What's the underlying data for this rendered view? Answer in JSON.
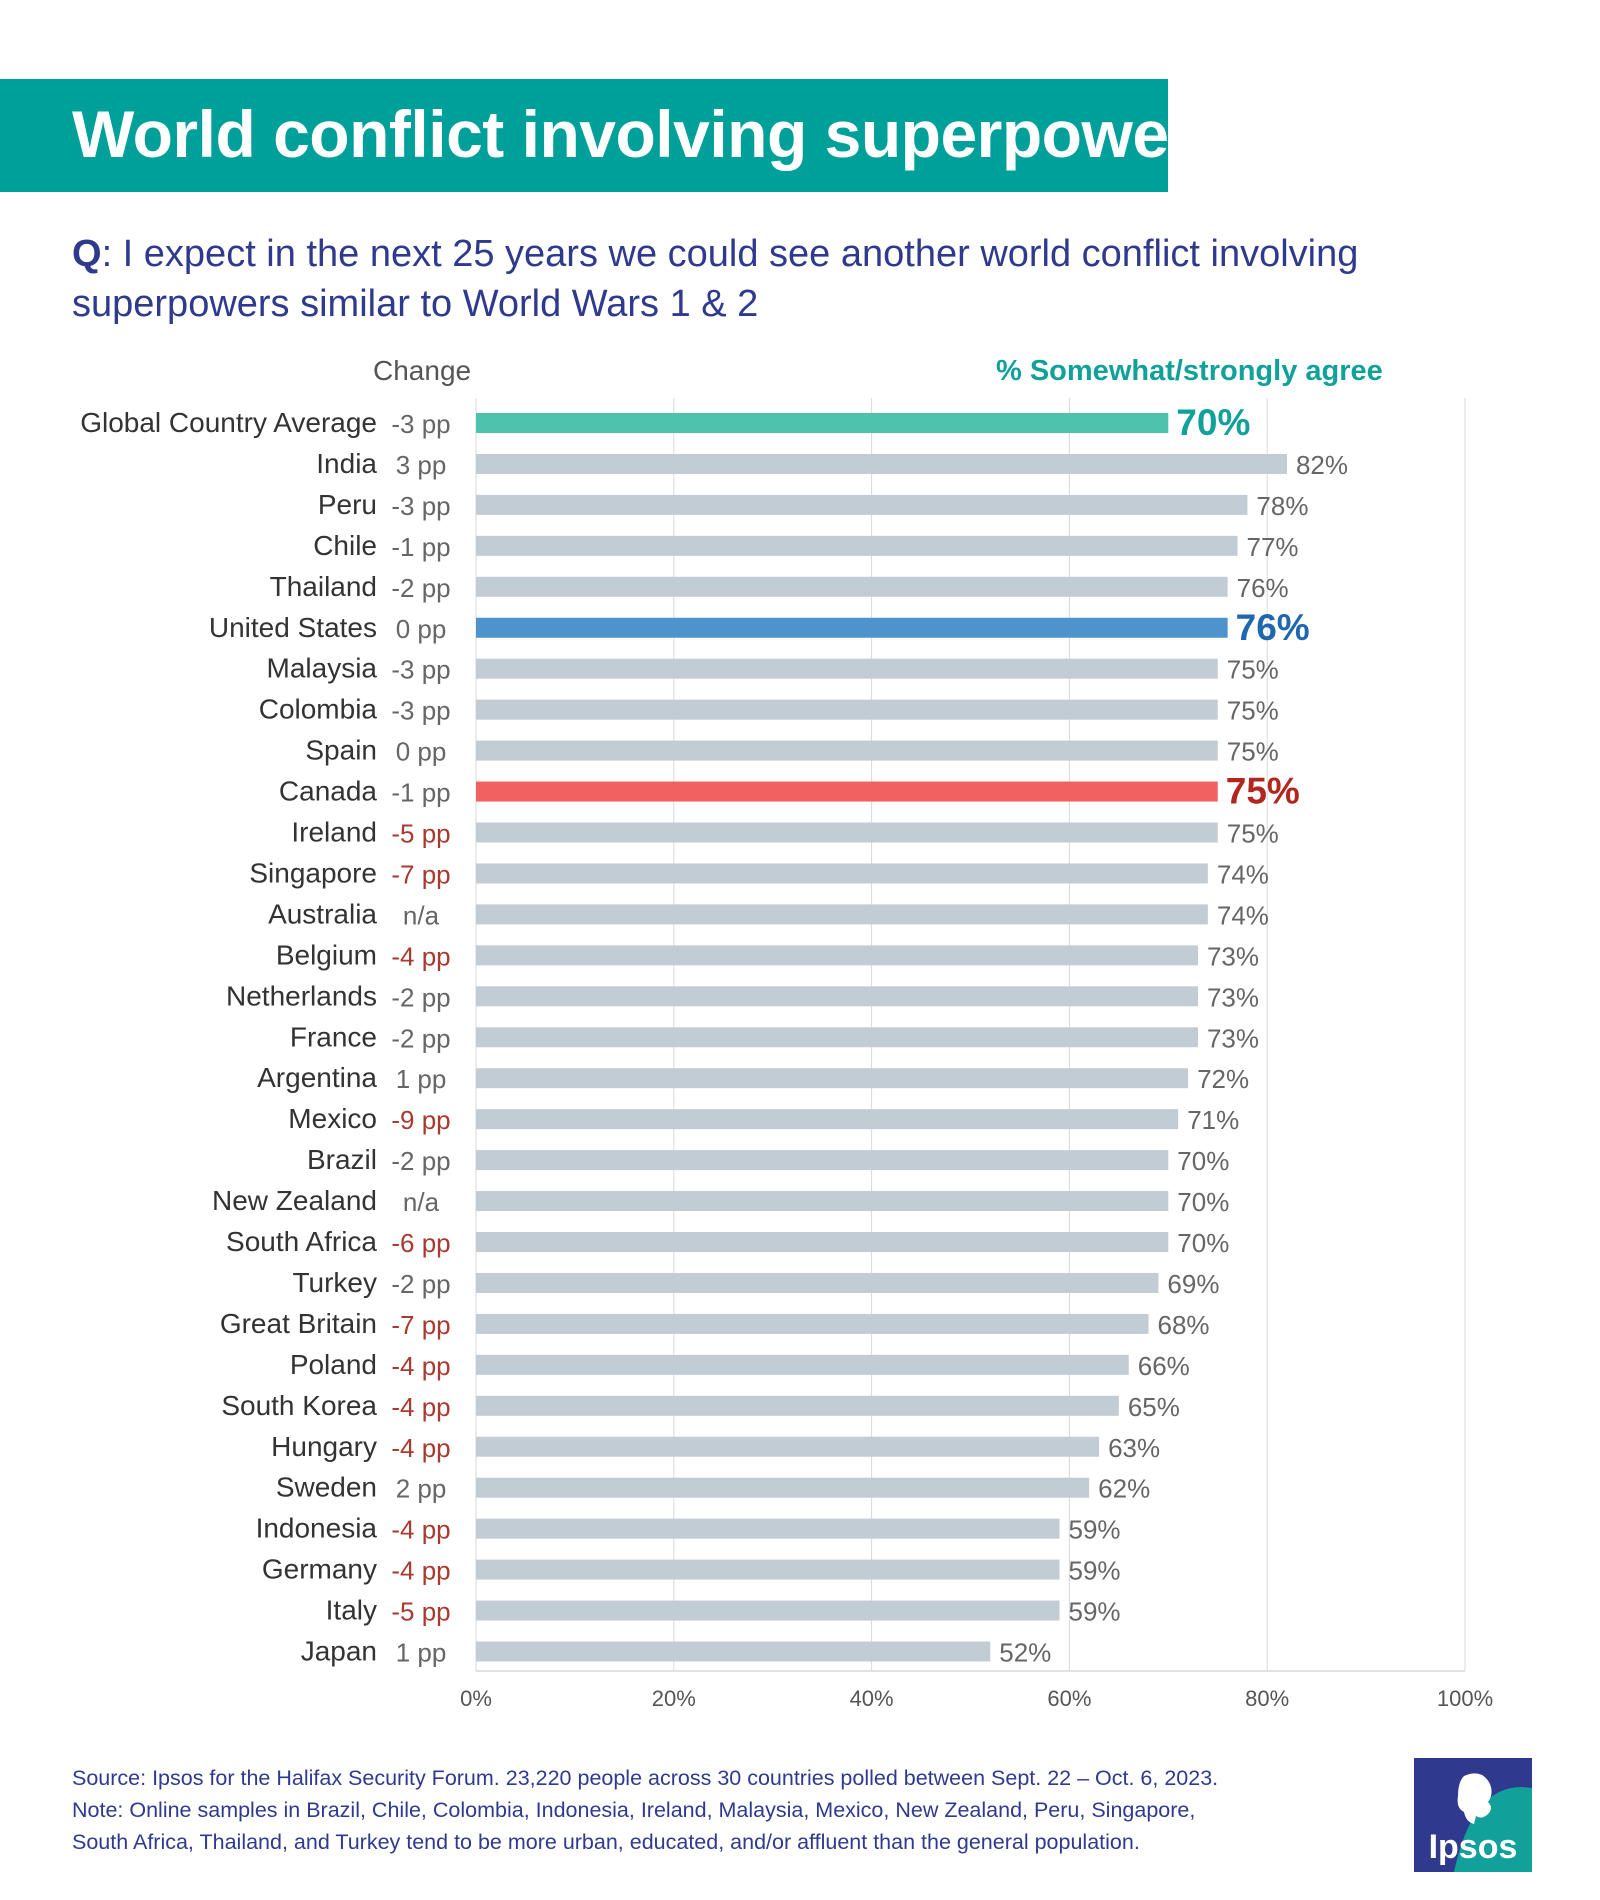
{
  "title": "World conflict involving superpower",
  "question": {
    "prefix": "Q",
    "text": ": I expect in the next 25 years we could see another world conflict involving superpowers similar to World Wars 1 & 2"
  },
  "headers": {
    "change": "Change",
    "agree": "% Somewhat/strongly agree"
  },
  "colors": {
    "default_bar": "#c2ccd4",
    "global_bar": "#4fc2ad",
    "global_label": "#12a09a",
    "us_bar": "#4f93cc",
    "us_label": "#1f67ae",
    "canada_bar": "#f16161",
    "canada_label": "#b3251f",
    "change_negative": "#a83a2f",
    "change_neutral": "#666666",
    "grid": "#d9d9d9"
  },
  "chart_data": {
    "type": "bar",
    "orientation": "horizontal",
    "xlim": [
      0,
      100
    ],
    "xticks": [
      "0%",
      "20%",
      "40%",
      "60%",
      "80%",
      "100%"
    ],
    "grid": true,
    "rows": [
      {
        "country": "Global Country Average",
        "change": "-3 pp",
        "value": 70,
        "label": "70%",
        "style": "global"
      },
      {
        "country": "India",
        "change": "3 pp",
        "value": 82,
        "label": "82%",
        "style": "default"
      },
      {
        "country": "Peru",
        "change": "-3 pp",
        "value": 78,
        "label": "78%",
        "style": "default"
      },
      {
        "country": "Chile",
        "change": "-1 pp",
        "value": 77,
        "label": "77%",
        "style": "default"
      },
      {
        "country": "Thailand",
        "change": "-2 pp",
        "value": 76,
        "label": "76%",
        "style": "default"
      },
      {
        "country": "United States",
        "change": "0 pp",
        "value": 76,
        "label": "76%",
        "style": "us"
      },
      {
        "country": "Malaysia",
        "change": "-3 pp",
        "value": 75,
        "label": "75%",
        "style": "default"
      },
      {
        "country": "Colombia",
        "change": "-3 pp",
        "value": 75,
        "label": "75%",
        "style": "default"
      },
      {
        "country": "Spain",
        "change": "0 pp",
        "value": 75,
        "label": "75%",
        "style": "default"
      },
      {
        "country": "Canada",
        "change": "-1 pp",
        "value": 75,
        "label": "75%",
        "style": "canada"
      },
      {
        "country": "Ireland",
        "change": "-5 pp",
        "value": 75,
        "label": "75%",
        "style": "default"
      },
      {
        "country": "Singapore",
        "change": "-7 pp",
        "value": 74,
        "label": "74%",
        "style": "default"
      },
      {
        "country": "Australia",
        "change": "n/a",
        "value": 74,
        "label": "74%",
        "style": "default"
      },
      {
        "country": "Belgium",
        "change": "-4 pp",
        "value": 73,
        "label": "73%",
        "style": "default"
      },
      {
        "country": "Netherlands",
        "change": "-2 pp",
        "value": 73,
        "label": "73%",
        "style": "default"
      },
      {
        "country": "France",
        "change": "-2 pp",
        "value": 73,
        "label": "73%",
        "style": "default"
      },
      {
        "country": "Argentina",
        "change": "1 pp",
        "value": 72,
        "label": "72%",
        "style": "default"
      },
      {
        "country": "Mexico",
        "change": "-9 pp",
        "value": 71,
        "label": "71%",
        "style": "default"
      },
      {
        "country": "Brazil",
        "change": "-2 pp",
        "value": 70,
        "label": "70%",
        "style": "default"
      },
      {
        "country": "New Zealand",
        "change": "n/a",
        "value": 70,
        "label": "70%",
        "style": "default"
      },
      {
        "country": "South Africa",
        "change": "-6 pp",
        "value": 70,
        "label": "70%",
        "style": "default"
      },
      {
        "country": "Turkey",
        "change": "-2 pp",
        "value": 69,
        "label": "69%",
        "style": "default"
      },
      {
        "country": "Great Britain",
        "change": "-7 pp",
        "value": 68,
        "label": "68%",
        "style": "default"
      },
      {
        "country": "Poland",
        "change": "-4 pp",
        "value": 66,
        "label": "66%",
        "style": "default"
      },
      {
        "country": "South Korea",
        "change": "-4 pp",
        "value": 65,
        "label": "65%",
        "style": "default"
      },
      {
        "country": "Hungary",
        "change": "-4 pp",
        "value": 63,
        "label": "63%",
        "style": "default"
      },
      {
        "country": "Sweden",
        "change": "2 pp",
        "value": 62,
        "label": "62%",
        "style": "default"
      },
      {
        "country": "Indonesia",
        "change": "-4 pp",
        "value": 59,
        "label": "59%",
        "style": "default"
      },
      {
        "country": "Germany",
        "change": "-4 pp",
        "value": 59,
        "label": "59%",
        "style": "default"
      },
      {
        "country": "Italy",
        "change": "-5 pp",
        "value": 59,
        "label": "59%",
        "style": "default"
      },
      {
        "country": "Japan",
        "change": "1 pp",
        "value": 52,
        "label": "52%",
        "style": "default"
      }
    ]
  },
  "footer": {
    "source": "Source: Ipsos for the Halifax Security Forum. 23,220 people across 30 countries polled between Sept. 22 – Oct. 6, 2023.",
    "note_line1": "Note: Online samples in Brazil, Chile, Colombia, Indonesia, Ireland, Malaysia, Mexico, New Zealand, Peru, Singapore,",
    "note_line2": "South Africa, Thailand, and Turkey tend to be more urban, educated, and/or affluent than the general population."
  },
  "logo": {
    "text": "Ipsos",
    "icon": "ipsos-logo-icon"
  }
}
